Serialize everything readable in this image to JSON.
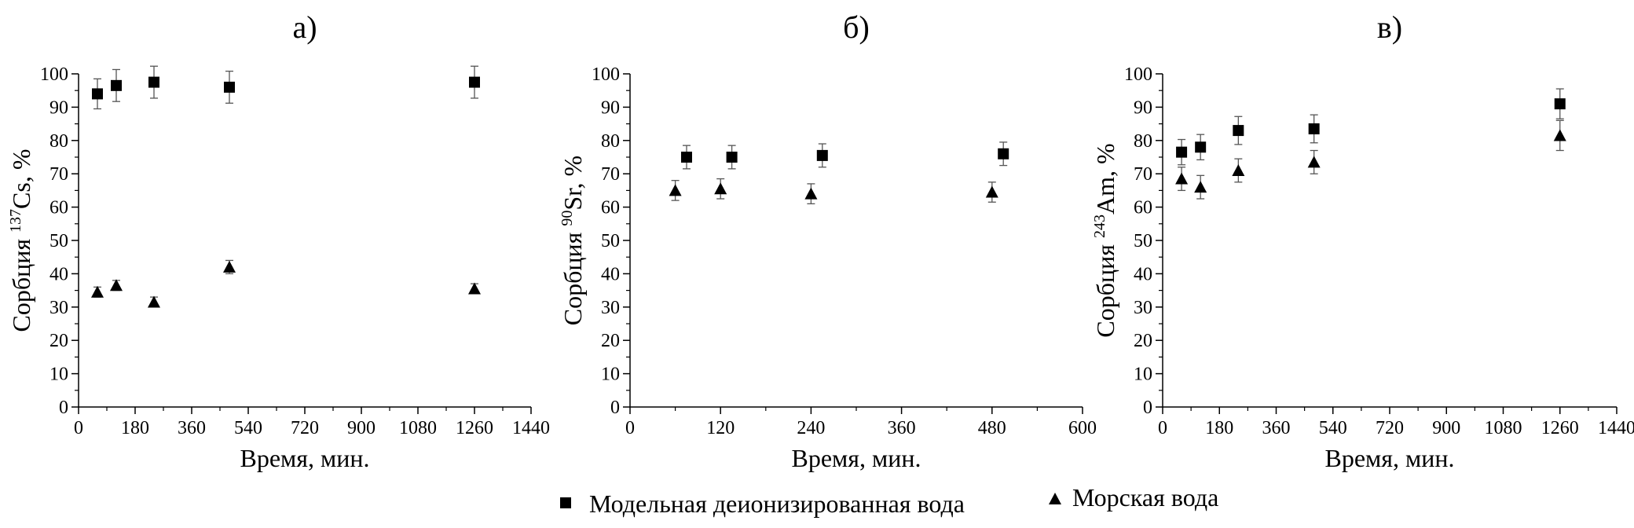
{
  "legend": {
    "items": [
      {
        "marker": "square",
        "label": "Модельная деионизированная вода"
      },
      {
        "marker": "triangle",
        "label": "Морская вода"
      }
    ],
    "placement": "bottom-center"
  },
  "chart_data": [
    {
      "type": "scatter",
      "panel_label": "а)",
      "xlabel": "Время, мин.",
      "ylabel": {
        "prefix": "Сорбция ",
        "isotope_mass": "137",
        "element": "Cs",
        "suffix": ", %"
      },
      "xlim": [
        0,
        1440
      ],
      "ylim": [
        0,
        100
      ],
      "xticks": [
        0,
        180,
        360,
        540,
        720,
        900,
        1080,
        1260,
        1440
      ],
      "xticks_minor": [
        90,
        270,
        450,
        630,
        810,
        990,
        1170,
        1350
      ],
      "yticks": [
        0,
        10,
        20,
        30,
        40,
        50,
        60,
        70,
        80,
        90,
        100
      ],
      "yticks_minor": [
        5,
        15,
        25,
        35,
        45,
        55,
        65,
        75,
        85,
        95
      ],
      "grid": false,
      "series": [
        {
          "marker": "square",
          "x": [
            60,
            120,
            240,
            480,
            1260
          ],
          "y": [
            94,
            96.5,
            97.5,
            96,
            97.5
          ],
          "err": [
            4.5,
            4.8,
            4.8,
            4.8,
            4.8
          ]
        },
        {
          "marker": "triangle",
          "x": [
            60,
            120,
            240,
            480,
            1260
          ],
          "y": [
            34.5,
            36.5,
            31.5,
            42,
            35.5
          ],
          "err": [
            1.5,
            1.5,
            1.5,
            2,
            1.5
          ]
        }
      ]
    },
    {
      "type": "scatter",
      "panel_label": "б)",
      "xlabel": "Время, мин.",
      "ylabel": {
        "prefix": "Сорбция ",
        "isotope_mass": "90",
        "element": "Sr",
        "suffix": ", %"
      },
      "xlim": [
        0,
        600
      ],
      "ylim": [
        0,
        100
      ],
      "xticks": [
        0,
        120,
        240,
        360,
        480,
        600
      ],
      "xticks_minor": [
        60,
        180,
        300,
        420,
        540
      ],
      "yticks": [
        0,
        10,
        20,
        30,
        40,
        50,
        60,
        70,
        80,
        90,
        100
      ],
      "yticks_minor": [
        5,
        15,
        25,
        35,
        45,
        55,
        65,
        75,
        85,
        95
      ],
      "grid": false,
      "series": [
        {
          "marker": "square",
          "x": [
            75,
            135,
            255,
            495
          ],
          "y": [
            75,
            75,
            75.5,
            76
          ],
          "err": [
            3.5,
            3.5,
            3.5,
            3.5
          ]
        },
        {
          "marker": "triangle",
          "x": [
            60,
            120,
            240,
            480
          ],
          "y": [
            65,
            65.5,
            64,
            64.5
          ],
          "err": [
            3,
            3,
            3,
            3
          ]
        }
      ]
    },
    {
      "type": "scatter",
      "panel_label": "в)",
      "xlabel": "Время, мин.",
      "ylabel": {
        "prefix": "Сорбция ",
        "isotope_mass": "243",
        "element": "Am",
        "suffix": ", %"
      },
      "xlim": [
        0,
        1440
      ],
      "ylim": [
        0,
        100
      ],
      "xticks": [
        0,
        180,
        360,
        540,
        720,
        900,
        1080,
        1260,
        1440
      ],
      "xticks_minor": [
        90,
        270,
        450,
        630,
        810,
        990,
        1170,
        1350
      ],
      "yticks": [
        0,
        10,
        20,
        30,
        40,
        50,
        60,
        70,
        80,
        90,
        100
      ],
      "yticks_minor": [
        5,
        15,
        25,
        35,
        45,
        55,
        65,
        75,
        85,
        95
      ],
      "grid": false,
      "series": [
        {
          "marker": "square",
          "x": [
            60,
            120,
            240,
            480,
            1260
          ],
          "y": [
            76.5,
            78,
            83,
            83.5,
            91
          ],
          "err": [
            3.8,
            3.8,
            4.2,
            4.2,
            4.5
          ]
        },
        {
          "marker": "triangle",
          "x": [
            60,
            120,
            240,
            480,
            1260
          ],
          "y": [
            68.5,
            66,
            71,
            73.5,
            81.5
          ],
          "err": [
            3.5,
            3.5,
            3.5,
            3.5,
            4.5
          ]
        }
      ]
    }
  ]
}
